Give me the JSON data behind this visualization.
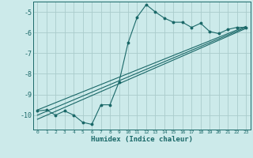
{
  "xlabel": "Humidex (Indice chaleur)",
  "bg_color": "#cceaea",
  "grid_color": "#aacccc",
  "line_color": "#1a6868",
  "xlim": [
    -0.5,
    23.5
  ],
  "ylim": [
    -10.7,
    -4.5
  ],
  "yticks": [
    -10,
    -9,
    -8,
    -7,
    -6,
    -5
  ],
  "xticks": [
    0,
    1,
    2,
    3,
    4,
    5,
    6,
    7,
    8,
    9,
    10,
    11,
    12,
    13,
    14,
    15,
    16,
    17,
    18,
    19,
    20,
    21,
    22,
    23
  ],
  "main_x": [
    0,
    1,
    2,
    3,
    4,
    5,
    6,
    7,
    8,
    9,
    10,
    11,
    12,
    13,
    14,
    15,
    16,
    17,
    18,
    19,
    20,
    21,
    22,
    23
  ],
  "main_y": [
    -9.8,
    -9.75,
    -10.0,
    -9.8,
    -10.0,
    -10.35,
    -10.45,
    -9.5,
    -9.5,
    -8.4,
    -6.5,
    -5.25,
    -4.65,
    -5.0,
    -5.3,
    -5.5,
    -5.5,
    -5.75,
    -5.55,
    -5.95,
    -6.05,
    -5.85,
    -5.75,
    -5.75
  ],
  "line1_x": [
    0,
    23
  ],
  "line1_y": [
    -10.0,
    -5.75
  ],
  "line2_x": [
    0,
    23
  ],
  "line2_y": [
    -9.75,
    -5.7
  ],
  "line3_x": [
    0,
    23
  ],
  "line3_y": [
    -10.2,
    -5.8
  ]
}
